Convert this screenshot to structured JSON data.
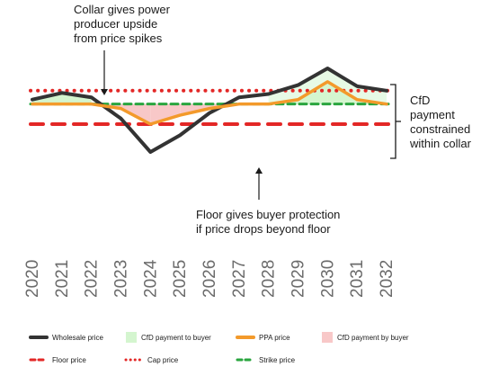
{
  "annotations": {
    "collar_upside": [
      "Collar gives power",
      "producer upside",
      "from price spikes"
    ],
    "floor_protection": [
      "Floor gives buyer protection",
      "if price drops beyond floor"
    ],
    "cfd_collar": [
      "CfD",
      "payment",
      "constrained",
      "within collar"
    ]
  },
  "chart_data": {
    "type": "line",
    "title": "",
    "xlabel": "",
    "ylabel": "",
    "x": [
      2020,
      2021,
      2022,
      2023,
      2024,
      2025,
      2026,
      2027,
      2028,
      2029,
      2030,
      2031,
      2032
    ],
    "xlim": [
      2020,
      2032
    ],
    "ylim": [
      0,
      100
    ],
    "grid": false,
    "series": [
      {
        "name": "Wholesale price",
        "style": "solid",
        "color": "#333333",
        "values": [
          72,
          78,
          74,
          55,
          25,
          40,
          60,
          74,
          77,
          85,
          100,
          84,
          80
        ]
      },
      {
        "name": "PPA price",
        "style": "solid",
        "color": "#f39a2b",
        "values": [
          68,
          68,
          68,
          64,
          50,
          58,
          64,
          68,
          68,
          72,
          88,
          72,
          68
        ]
      },
      {
        "name": "Floor price",
        "style": "dashed",
        "color": "#e32726",
        "values": [
          50,
          50,
          50,
          50,
          50,
          50,
          50,
          50,
          50,
          50,
          50,
          50,
          50
        ]
      },
      {
        "name": "Cap price",
        "style": "dotted",
        "color": "#e32726",
        "values": [
          80,
          80,
          80,
          80,
          80,
          80,
          80,
          80,
          80,
          80,
          80,
          80,
          80
        ]
      },
      {
        "name": "Strike price",
        "style": "dashed",
        "color": "#2aa53f",
        "values": [
          68,
          68,
          68,
          68,
          68,
          68,
          68,
          68,
          68,
          68,
          68,
          68,
          68
        ]
      }
    ],
    "areas": [
      {
        "name": "CfD payment to buyer",
        "color": "#d4f5cf"
      },
      {
        "name": "CfD payment by buyer",
        "color": "#f8c8c8"
      }
    ],
    "legend": {
      "placement": "bottom",
      "items": [
        {
          "label": "Wholesale price",
          "kind": "line",
          "color": "#333333"
        },
        {
          "label": "CfD payment to buyer",
          "kind": "patch",
          "color": "#d4f5cf"
        },
        {
          "label": "PPA price",
          "kind": "line",
          "color": "#f39a2b"
        },
        {
          "label": "CfD payment by buyer",
          "kind": "patch",
          "color": "#f8c8c8"
        },
        {
          "label": "Floor price",
          "kind": "dashed",
          "color": "#e32726"
        },
        {
          "label": "Cap price",
          "kind": "dotted",
          "color": "#e32726"
        },
        {
          "label": "Strike price",
          "kind": "dashed",
          "color": "#2aa53f"
        }
      ]
    }
  }
}
